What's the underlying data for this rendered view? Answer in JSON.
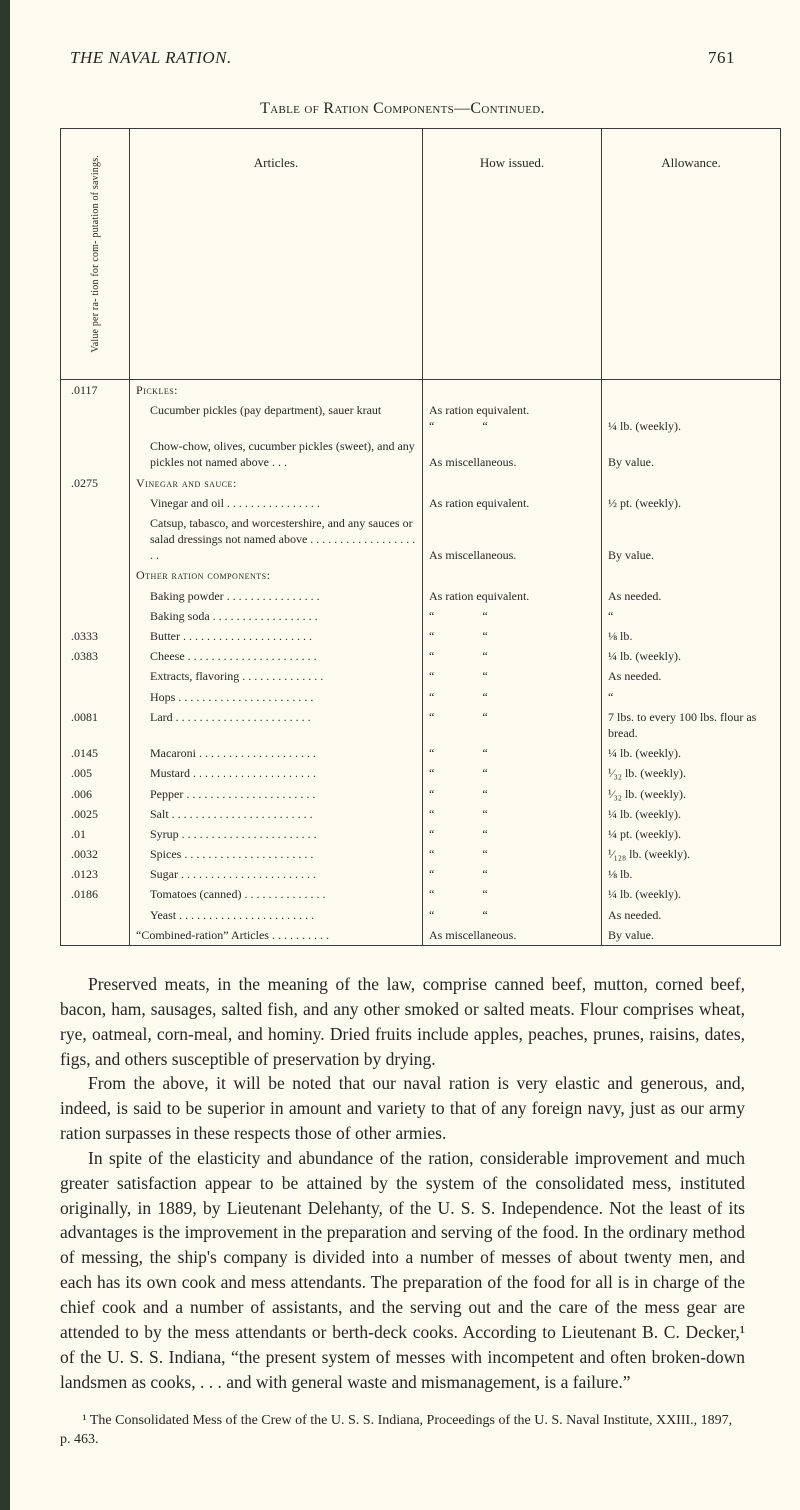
{
  "header": {
    "title": "THE NAVAL RATION.",
    "pageno": "761"
  },
  "table_title": "Table of Ration Components—Continued.",
  "table": {
    "col_headers": {
      "val": "Value per ra-\ntion for com-\nputation of\nsavings.",
      "articles": "Articles.",
      "how_issued": "How issued.",
      "allowance": "Allowance."
    },
    "rows": [
      {
        "val": ".0117",
        "art_class": "sc",
        "art": "Pickles:",
        "how": "",
        "allow": ""
      },
      {
        "val": "",
        "art_class": "indent1",
        "art": "Cucumber pickles (pay department), sauer kraut",
        "how": "As ration equivalent.\n“                “",
        "allow": "\n¼ lb. (weekly)."
      },
      {
        "val": "",
        "art_class": "indent1",
        "art": "Chow-chow, olives, cucumber pickles (sweet), and any pickles not named above . . .",
        "how": "\nAs miscellaneous.",
        "allow": "\nBy value."
      },
      {
        "val": ".0275",
        "art_class": "sc",
        "art": "Vinegar and sauce:",
        "how": "",
        "allow": ""
      },
      {
        "val": "",
        "art_class": "indent1",
        "art": "Vinegar and oil . . . . . . . . . . . . . . . .",
        "how": "As ration equivalent.",
        "allow": "½ pt. (weekly)."
      },
      {
        "val": "",
        "art_class": "indent1",
        "art": "Catsup, tabasco, and worcestershire, and any sauces or salad dressings not named above . . . . . . . . . . . . . . . . . . . .",
        "how": "\n\nAs miscellaneous.",
        "allow": "\n\nBy value."
      },
      {
        "val": "",
        "art_class": "sc",
        "art": "Other ration components:",
        "how": "",
        "allow": ""
      },
      {
        "val": "",
        "art_class": "indent1",
        "art": "Baking powder . . . . . . . . . . . . . . . .",
        "how": "As ration equivalent.",
        "allow": "As needed."
      },
      {
        "val": "",
        "art_class": "indent1",
        "art": "Baking soda . . . . . . . . . . . . . . . . . .",
        "how": "“                “",
        "allow": "“"
      },
      {
        "val": ".0333",
        "art_class": "indent1",
        "art": "Butter . . . . . . . . . . . . . . . . . . . . . .",
        "how": "“                “",
        "allow": "⅛ lb."
      },
      {
        "val": ".0383",
        "art_class": "indent1",
        "art": "Cheese . . . . . . . . . . . . . . . . . . . . . .",
        "how": "“                “",
        "allow": "¼ lb. (weekly)."
      },
      {
        "val": "",
        "art_class": "indent1",
        "art": "Extracts, flavoring . . . . . . . . . . . . . .",
        "how": "“                “",
        "allow": "As needed."
      },
      {
        "val": "",
        "art_class": "indent1",
        "art": "Hops . . . . . . . . . . . . . . . . . . . . . . .",
        "how": "“                “",
        "allow": "“"
      },
      {
        "val": ".0081",
        "art_class": "indent1",
        "art": "Lard . . . . . . . . . . . . . . . . . . . . . . .",
        "how": "“                “",
        "allow": "7 lbs. to every 100 lbs. flour as bread."
      },
      {
        "val": ".0145",
        "art_class": "indent1",
        "art": "Macaroni . . . . . . . . . . . . . . . . . . . .",
        "how": "“                “",
        "allow": "¼ lb. (weekly)."
      },
      {
        "val": ".005",
        "art_class": "indent1",
        "art": "Mustard . . . . . . . . . . . . . . . . . . . . .",
        "how": "“                “",
        "allow": "¹⁄₃₂ lb. (weekly)."
      },
      {
        "val": ".006",
        "art_class": "indent1",
        "art": "Pepper . . . . . . . . . . . . . . . . . . . . . .",
        "how": "“                “",
        "allow": "¹⁄₃₂ lb. (weekly)."
      },
      {
        "val": ".0025",
        "art_class": "indent1",
        "art": "Salt . . . . . . . . . . . . . . . . . . . . . . . .",
        "how": "“                “",
        "allow": "¼ lb. (weekly)."
      },
      {
        "val": ".01",
        "art_class": "indent1",
        "art": "Syrup . . . . . . . . . . . . . . . . . . . . . . .",
        "how": "“                “",
        "allow": "¼ pt. (weekly)."
      },
      {
        "val": ".0032",
        "art_class": "indent1",
        "art": "Spices . . . . . . . . . . . . . . . . . . . . . .",
        "how": "“                “",
        "allow": "¹⁄₁₂₈ lb. (weekly)."
      },
      {
        "val": ".0123",
        "art_class": "indent1",
        "art": "Sugar . . . . . . . . . . . . . . . . . . . . . . .",
        "how": "“                “",
        "allow": "⅛ lb."
      },
      {
        "val": ".0186",
        "art_class": "indent1",
        "art": "Tomatoes (canned) . . . . . . . . . . . . . .",
        "how": "“                “",
        "allow": "¼ lb. (weekly)."
      },
      {
        "val": "",
        "art_class": "indent1",
        "art": "Yeast . . . . . . . . . . . . . . . . . . . . . . .",
        "how": "“                “",
        "allow": "As needed."
      },
      {
        "val": "",
        "art_class": "",
        "art": "“Combined-ration” Articles . . . . . . . . . .",
        "how": "As miscellaneous.",
        "allow": "By value."
      }
    ]
  },
  "paragraphs": [
    "Preserved meats, in the meaning of the law, comprise canned beef, mutton, corned beef, bacon, ham, sausages, salted fish, and any other smoked or salted meats. Flour comprises wheat, rye, oatmeal, corn-meal, and hominy. Dried fruits include apples, peaches, prunes, raisins, dates, figs, and others susceptible of preservation by drying.",
    "From the above, it will be noted that our naval ration is very elastic and generous, and, indeed, is said to be superior in amount and variety to that of any foreign navy, just as our army ration surpasses in these respects those of other armies.",
    "In spite of the elasticity and abundance of the ration, considerable improvement and much greater satisfaction appear to be attained by the system of the consolidated mess, instituted originally, in 1889, by Lieutenant Delehanty, of the U. S. S. Independence. Not the least of its advantages is the improvement in the preparation and serving of the food. In the ordinary method of messing, the ship's company is divided into a number of messes of about twenty men, and each has its own cook and mess attendants. The preparation of the food for all is in charge of the chief cook and a number of assistants, and the serving out and the care of the mess gear are attended to by the mess attendants or berth-deck cooks. According to Lieutenant B. C. Decker,¹ of the U. S. S. Indiana, “the present system of messes with incompetent and often broken-down landsmen as cooks, . . . and with general waste and mismanagement, is a failure.”"
  ],
  "footnote": "¹ The Consolidated Mess of the Crew of the U. S. S. Indiana, Proceedings of the U. S. Naval Institute, XXIII., 1897, p. 463."
}
